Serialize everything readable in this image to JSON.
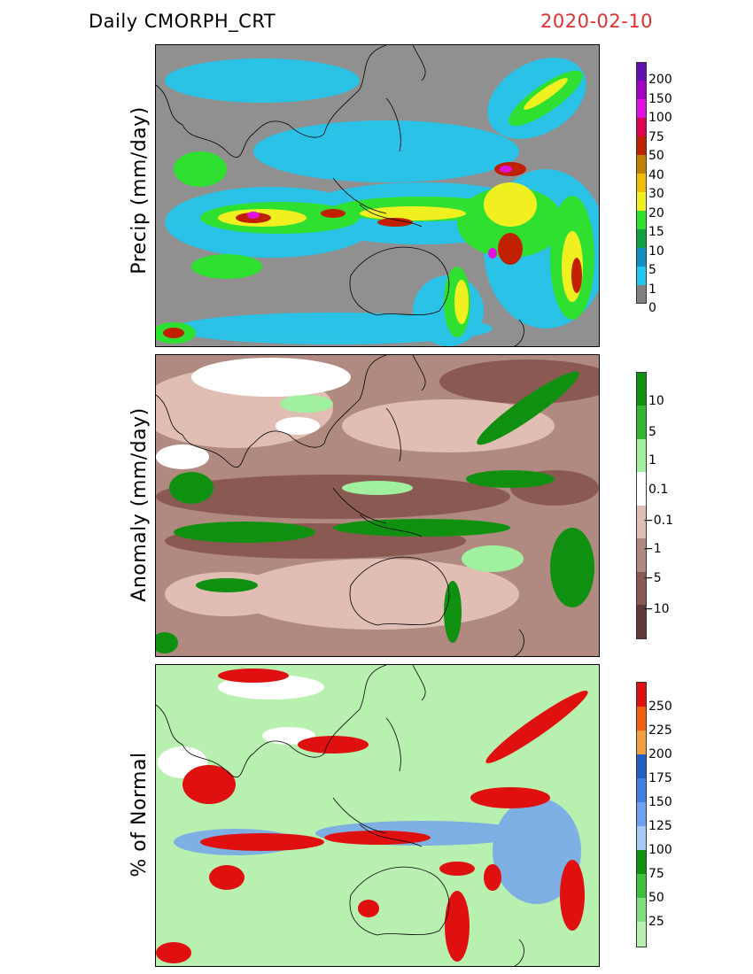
{
  "header": {
    "title": "Daily CMORPH_CRT",
    "date": "2020-02-10"
  },
  "panels": [
    {
      "name": "precip",
      "ylabel": "Precip (mm/day)",
      "colorbar": {
        "colors": [
          "#808080",
          "#20c8f0",
          "#1090c0",
          "#10a040",
          "#30e030",
          "#f0f020",
          "#f0c000",
          "#c08000",
          "#c02000",
          "#e00050",
          "#e010e0",
          "#a000c0",
          "#6010b0"
        ],
        "labels": [
          "0",
          "1",
          "5",
          "10",
          "15",
          "20",
          "30",
          "40",
          "50",
          "75",
          "100",
          "150",
          "200"
        ]
      }
    },
    {
      "name": "anomaly",
      "ylabel": "Anomaly (mm/day)",
      "colorbar": {
        "colors": [
          "#603838",
          "#8a5a52",
          "#b08a80",
          "#e0beb4",
          "#ffffff",
          "#a0f0a0",
          "#30b830",
          "#109010"
        ],
        "labels": [
          "−10",
          "−5",
          "−1",
          "−0.1",
          "0.1",
          "1",
          "5",
          "10"
        ]
      }
    },
    {
      "name": "percent",
      "ylabel": "% of Normal",
      "colorbar": {
        "colors": [
          "#b8f0b0",
          "#80e080",
          "#40c040",
          "#109010",
          "#a8c8f8",
          "#70a0f0",
          "#4080e0",
          "#2060c0",
          "#f0a040",
          "#f06010",
          "#e01010"
        ],
        "labels": [
          "25",
          "50",
          "75",
          "100",
          "125",
          "150",
          "175",
          "200",
          "225",
          "250"
        ]
      }
    }
  ]
}
